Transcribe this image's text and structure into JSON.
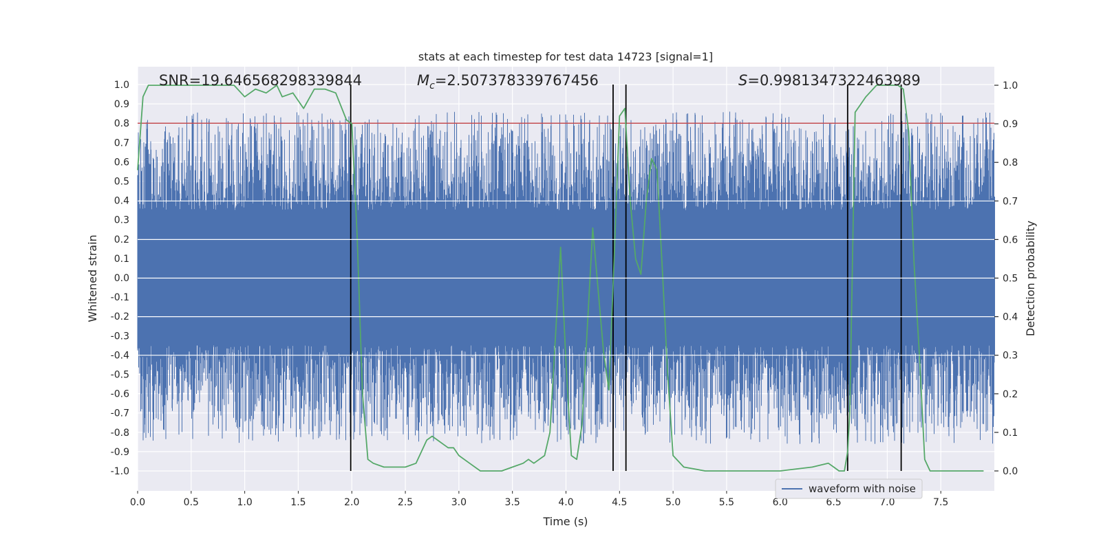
{
  "chart_data": {
    "type": "line",
    "title": "stats at each timestep for test data 14723 [signal=1]",
    "xlabel": "Time (s)",
    "ylabel_left": "Whitened strain",
    "ylabel_right": "Detection probability",
    "xlim": [
      0.0,
      8.0
    ],
    "ylim_left": [
      -1.05,
      1.05
    ],
    "ylim_right": [
      -0.05,
      1.05
    ],
    "xticks": [
      "0.0",
      "0.5",
      "1.0",
      "1.5",
      "2.0",
      "2.5",
      "3.0",
      "3.5",
      "4.0",
      "4.5",
      "5.0",
      "5.5",
      "6.0",
      "6.5",
      "7.0",
      "7.5"
    ],
    "yticks_left": [
      "1.0",
      "0.9",
      "0.8",
      "0.7",
      "0.6",
      "0.5",
      "0.4",
      "0.3",
      "0.2",
      "0.1",
      "0.0",
      "-0.1",
      "-0.2",
      "-0.3",
      "-0.4",
      "-0.5",
      "-0.6",
      "-0.7",
      "-0.8",
      "-0.9",
      "-1.0"
    ],
    "yticks_right": [
      "1.0",
      "0.9",
      "0.8",
      "0.7",
      "0.6",
      "0.5",
      "0.4",
      "0.3",
      "0.2",
      "0.1",
      "0.0"
    ],
    "grid": true,
    "annotations": {
      "snr": "SNR=19.646568298339844",
      "mc_symbol": "M",
      "mc_sub": "c",
      "mc_value": "=2.507378339767456",
      "s_symbol": "S",
      "s_value": "=0.9981347322463989"
    },
    "threshold": {
      "value": 0.8,
      "axis": "left"
    },
    "vertical_markers": [
      1.99,
      4.44,
      4.56,
      6.63,
      7.13
    ],
    "waveform": {
      "name": "waveform with noise",
      "core_amplitude": 0.35,
      "peak_amplitude_range": [
        -0.86,
        0.86
      ],
      "sample_rate_hz": 2048
    },
    "probability_series": {
      "x": [
        0.0,
        0.05,
        0.1,
        0.2,
        0.3,
        0.4,
        0.5,
        0.6,
        0.7,
        0.8,
        0.9,
        1.0,
        1.1,
        1.2,
        1.3,
        1.35,
        1.45,
        1.55,
        1.65,
        1.75,
        1.85,
        1.95,
        2.0,
        2.05,
        2.1,
        2.15,
        2.2,
        2.3,
        2.4,
        2.5,
        2.6,
        2.7,
        2.75,
        2.8,
        2.85,
        2.9,
        2.95,
        3.0,
        3.1,
        3.2,
        3.3,
        3.4,
        3.5,
        3.6,
        3.65,
        3.7,
        3.8,
        3.85,
        3.95,
        4.0,
        4.05,
        4.1,
        4.15,
        4.25,
        4.35,
        4.4,
        4.45,
        4.5,
        4.55,
        4.6,
        4.65,
        4.7,
        4.75,
        4.8,
        4.85,
        4.9,
        4.95,
        5.0,
        5.1,
        5.3,
        5.6,
        6.0,
        6.3,
        6.45,
        6.5,
        6.55,
        6.6,
        6.63,
        6.65,
        6.7,
        6.75,
        6.8,
        6.9,
        7.0,
        7.1,
        7.15,
        7.2,
        7.25,
        7.3,
        7.35,
        7.4,
        7.6,
        7.8,
        7.9
      ],
      "y": [
        0.78,
        0.97,
        1.0,
        1.0,
        1.0,
        1.0,
        1.0,
        1.0,
        1.0,
        1.0,
        1.0,
        0.97,
        0.99,
        0.98,
        1.0,
        0.97,
        0.98,
        0.94,
        0.99,
        0.99,
        0.98,
        0.91,
        0.9,
        0.61,
        0.2,
        0.03,
        0.02,
        0.01,
        0.01,
        0.01,
        0.02,
        0.08,
        0.09,
        0.08,
        0.07,
        0.06,
        0.06,
        0.04,
        0.02,
        0.0,
        0.0,
        0.0,
        0.01,
        0.02,
        0.03,
        0.02,
        0.04,
        0.1,
        0.58,
        0.28,
        0.04,
        0.03,
        0.12,
        0.63,
        0.31,
        0.21,
        0.55,
        0.92,
        0.94,
        0.7,
        0.55,
        0.51,
        0.7,
        0.81,
        0.78,
        0.52,
        0.25,
        0.04,
        0.01,
        0.0,
        0.0,
        0.0,
        0.01,
        0.02,
        0.01,
        0.0,
        0.0,
        0.05,
        0.15,
        0.93,
        0.95,
        0.97,
        1.0,
        1.0,
        1.0,
        0.99,
        0.88,
        0.54,
        0.3,
        0.03,
        0.0,
        0.0,
        0.0,
        0.0
      ]
    },
    "legend": {
      "position": "lower-right",
      "entries": [
        "waveform with noise"
      ]
    },
    "colors": {
      "plot_bg": "#eaeaf2",
      "grid": "#ffffff",
      "waveform": "#4c72b0",
      "probability": "#55a868",
      "threshold": "#c44e52",
      "markers": "#000000"
    }
  }
}
